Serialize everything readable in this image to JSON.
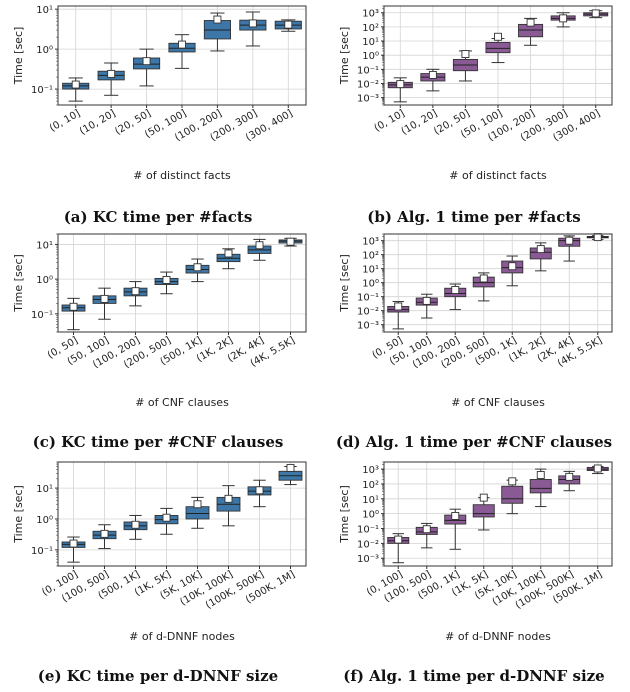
{
  "chart_data": [
    {
      "type": "box",
      "caption": "(a) KC time per #facts",
      "xlabel": "# of distinct facts",
      "ylabel": "Time [sec]",
      "yscale": "log",
      "ylim": [
        0.04,
        12
      ],
      "yticks": [
        0.1,
        1,
        10
      ],
      "ytick_labels": [
        "10⁻¹",
        "10⁰",
        "10¹"
      ],
      "grid": true,
      "color": "#3d77a8",
      "categories": [
        "(0, 10]",
        "(10, 20]",
        "(20, 50]",
        "(50, 100]",
        "(100, 200]",
        "(200, 300]",
        "(300, 400]"
      ],
      "boxes": [
        {
          "whislo": 0.05,
          "q1": 0.1,
          "med": 0.12,
          "q3": 0.14,
          "whishi": 0.19,
          "mean": 0.13
        },
        {
          "whislo": 0.07,
          "q1": 0.17,
          "med": 0.22,
          "q3": 0.28,
          "whishi": 0.45,
          "mean": 0.24
        },
        {
          "whislo": 0.12,
          "q1": 0.32,
          "med": 0.42,
          "q3": 0.6,
          "whishi": 1.0,
          "mean": 0.5
        },
        {
          "whislo": 0.33,
          "q1": 0.85,
          "med": 1.05,
          "q3": 1.4,
          "whishi": 2.3,
          "mean": 1.3
        },
        {
          "whislo": 0.9,
          "q1": 1.8,
          "med": 3.0,
          "q3": 5.2,
          "whishi": 8.0,
          "mean": 5.5
        },
        {
          "whislo": 1.2,
          "q1": 3.0,
          "med": 4.0,
          "q3": 5.3,
          "whishi": 8.5,
          "mean": 4.4
        },
        {
          "whislo": 2.8,
          "q1": 3.2,
          "med": 4.0,
          "q3": 5.0,
          "whishi": 5.4,
          "mean": 4.1
        }
      ]
    },
    {
      "type": "box",
      "caption": "(b) Alg. 1 time per #facts",
      "xlabel": "# of distinct facts",
      "ylabel": "Time [sec]",
      "yscale": "log",
      "ylim": [
        0.0003,
        3000
      ],
      "yticks": [
        0.001,
        0.01,
        0.1,
        1,
        10,
        100,
        1000
      ],
      "ytick_labels": [
        "10⁻³",
        "10⁻²",
        "10⁻¹",
        "10⁰",
        "10¹",
        "10²",
        "10³"
      ],
      "grid": true,
      "color": "#8a5a95",
      "categories": [
        "(0, 10]",
        "(10, 20]",
        "(20, 50]",
        "(50, 100]",
        "(100, 200]",
        "(200, 300]",
        "(300, 400]"
      ],
      "boxes": [
        {
          "whislo": 0.0005,
          "q1": 0.005,
          "med": 0.008,
          "q3": 0.012,
          "whishi": 0.025,
          "mean": 0.009
        },
        {
          "whislo": 0.003,
          "q1": 0.015,
          "med": 0.028,
          "q3": 0.05,
          "whishi": 0.1,
          "mean": 0.04
        },
        {
          "whislo": 0.015,
          "q1": 0.08,
          "med": 0.2,
          "q3": 0.5,
          "whishi": 2.0,
          "mean": 1.2
        },
        {
          "whislo": 0.3,
          "q1": 1.5,
          "med": 3.0,
          "q3": 8.0,
          "whishi": 15,
          "mean": 20
        },
        {
          "whislo": 5,
          "q1": 20,
          "med": 60,
          "q3": 150,
          "whishi": 400,
          "mean": 200
        },
        {
          "whislo": 100,
          "q1": 300,
          "med": 400,
          "q3": 600,
          "whishi": 1000,
          "mean": 400
        },
        {
          "whislo": 450,
          "q1": 600,
          "med": 800,
          "q3": 1000,
          "whishi": 1400,
          "mean": 900
        }
      ]
    },
    {
      "type": "box",
      "caption": "(c) KC time per #CNF clauses",
      "xlabel": "# of CNF clauses",
      "ylabel": "Time [sec]",
      "yscale": "log",
      "ylim": [
        0.03,
        20
      ],
      "yticks": [
        0.1,
        1,
        10
      ],
      "ytick_labels": [
        "10⁻¹",
        "10⁰",
        "10¹"
      ],
      "grid": true,
      "color": "#3d77a8",
      "categories": [
        "(0, 50]",
        "(50, 100]",
        "(100, 200]",
        "(200, 500]",
        "(500, 1K]",
        "(1K, 2K]",
        "(2K, 4K]",
        "(4K, 5.5K]"
      ],
      "boxes": [
        {
          "whislo": 0.035,
          "q1": 0.12,
          "med": 0.15,
          "q3": 0.18,
          "whishi": 0.28,
          "mean": 0.16
        },
        {
          "whislo": 0.07,
          "q1": 0.2,
          "med": 0.26,
          "q3": 0.33,
          "whishi": 0.55,
          "mean": 0.27
        },
        {
          "whislo": 0.17,
          "q1": 0.33,
          "med": 0.43,
          "q3": 0.55,
          "whishi": 0.85,
          "mean": 0.45
        },
        {
          "whislo": 0.38,
          "q1": 0.7,
          "med": 0.85,
          "q3": 1.05,
          "whishi": 1.6,
          "mean": 0.95
        },
        {
          "whislo": 0.85,
          "q1": 1.5,
          "med": 1.9,
          "q3": 2.5,
          "whishi": 3.8,
          "mean": 2.2
        },
        {
          "whislo": 2.0,
          "q1": 3.2,
          "med": 4.0,
          "q3": 5.2,
          "whishi": 7.5,
          "mean": 5.5
        },
        {
          "whislo": 3.5,
          "q1": 5.5,
          "med": 7.0,
          "q3": 9.0,
          "whishi": 14,
          "mean": 9.5
        },
        {
          "whislo": 9,
          "q1": 11,
          "med": 12.5,
          "q3": 13.5,
          "whishi": 15,
          "mean": 12
        }
      ]
    },
    {
      "type": "box",
      "caption": "(d) Alg. 1 time per #CNF clauses",
      "xlabel": "# of CNF clauses",
      "ylabel": "Time [sec]",
      "yscale": "log",
      "ylim": [
        0.0003,
        3000
      ],
      "yticks": [
        0.001,
        0.01,
        0.1,
        1,
        10,
        100,
        1000
      ],
      "ytick_labels": [
        "10⁻³",
        "10⁻²",
        "10⁻¹",
        "10⁰",
        "10¹",
        "10²",
        "10³"
      ],
      "grid": true,
      "color": "#8a5a95",
      "categories": [
        "(0, 50]",
        "(50, 100]",
        "(100, 200]",
        "(200, 500]",
        "(500, 1K]",
        "(1K, 2K]",
        "(2K, 4K]",
        "(4K, 5.5K]"
      ],
      "boxes": [
        {
          "whislo": 0.0005,
          "q1": 0.008,
          "med": 0.012,
          "q3": 0.02,
          "whishi": 0.045,
          "mean": 0.02
        },
        {
          "whislo": 0.003,
          "q1": 0.025,
          "med": 0.04,
          "q3": 0.08,
          "whishi": 0.15,
          "mean": 0.05
        },
        {
          "whislo": 0.012,
          "q1": 0.1,
          "med": 0.17,
          "q3": 0.4,
          "whishi": 0.8,
          "mean": 0.3
        },
        {
          "whislo": 0.05,
          "q1": 0.5,
          "med": 1.0,
          "q3": 2.5,
          "whishi": 5.0,
          "mean": 2.0
        },
        {
          "whislo": 0.6,
          "q1": 5,
          "med": 12,
          "q3": 35,
          "whishi": 80,
          "mean": 15
        },
        {
          "whislo": 7,
          "q1": 50,
          "med": 150,
          "q3": 300,
          "whishi": 700,
          "mean": 250
        },
        {
          "whislo": 35,
          "q1": 400,
          "med": 1000,
          "q3": 1500,
          "whishi": 2200,
          "mean": 1000
        },
        {
          "whislo": 1200,
          "q1": 1600,
          "med": 1800,
          "q3": 2000,
          "whishi": 2300,
          "mean": 1800
        }
      ]
    },
    {
      "type": "box",
      "caption": "(e) KC time per d-DNNF size",
      "xlabel": "# of d-DNNF nodes",
      "ylabel": "Time [sec]",
      "yscale": "log",
      "ylim": [
        0.03,
        70
      ],
      "yticks": [
        0.1,
        1,
        10
      ],
      "ytick_labels": [
        "10⁻¹",
        "10⁰",
        "10¹"
      ],
      "grid": true,
      "color": "#3d77a8",
      "categories": [
        "(0, 100]",
        "(100, 500]",
        "(500, 1K]",
        "(1K, 5K]",
        "(5K, 10K]",
        "(10K, 100K]",
        "(100K, 500K]",
        "(500K, 1M]"
      ],
      "boxes": [
        {
          "whislo": 0.04,
          "q1": 0.12,
          "med": 0.15,
          "q3": 0.18,
          "whishi": 0.26,
          "mean": 0.16
        },
        {
          "whislo": 0.11,
          "q1": 0.23,
          "med": 0.3,
          "q3": 0.4,
          "whishi": 0.65,
          "mean": 0.33
        },
        {
          "whislo": 0.22,
          "q1": 0.45,
          "med": 0.6,
          "q3": 0.8,
          "whishi": 1.3,
          "mean": 0.65
        },
        {
          "whislo": 0.32,
          "q1": 0.7,
          "med": 0.95,
          "q3": 1.3,
          "whishi": 2.2,
          "mean": 1.1
        },
        {
          "whislo": 0.5,
          "q1": 1.0,
          "med": 1.5,
          "q3": 2.5,
          "whishi": 5.0,
          "mean": 3.0
        },
        {
          "whislo": 0.6,
          "q1": 1.8,
          "med": 3.0,
          "q3": 5.0,
          "whishi": 12,
          "mean": 4.5
        },
        {
          "whislo": 2.5,
          "q1": 6,
          "med": 8,
          "q3": 11,
          "whishi": 18,
          "mean": 8.5
        },
        {
          "whislo": 13,
          "q1": 18,
          "med": 25,
          "q3": 35,
          "whishi": 50,
          "mean": 45
        }
      ]
    },
    {
      "type": "box",
      "caption": "(f) Alg. 1 time per d-DNNF size",
      "xlabel": "# of d-DNNF nodes",
      "ylabel": "Time [sec]",
      "yscale": "log",
      "ylim": [
        0.0003,
        3000
      ],
      "yticks": [
        0.001,
        0.01,
        0.1,
        1,
        10,
        100,
        1000
      ],
      "ytick_labels": [
        "10⁻³",
        "10⁻²",
        "10⁻¹",
        "10⁰",
        "10¹",
        "10²",
        "10³"
      ],
      "grid": true,
      "color": "#8a5a95",
      "categories": [
        "(0, 100]",
        "(100, 500]",
        "(500, 1K]",
        "(1K, 5K]",
        "(5K, 10K]",
        "(10K, 100K]",
        "(100K, 500K]",
        "(500K, 1M]"
      ],
      "boxes": [
        {
          "whislo": 0.0005,
          "q1": 0.01,
          "med": 0.015,
          "q3": 0.025,
          "whishi": 0.045,
          "mean": 0.018
        },
        {
          "whislo": 0.005,
          "q1": 0.04,
          "med": 0.06,
          "q3": 0.12,
          "whishi": 0.22,
          "mean": 0.09
        },
        {
          "whislo": 0.004,
          "q1": 0.2,
          "med": 0.35,
          "q3": 0.8,
          "whishi": 2.0,
          "mean": 0.7
        },
        {
          "whislo": 0.08,
          "q1": 0.6,
          "med": 1.0,
          "q3": 4.0,
          "whishi": 12,
          "mean": 12
        },
        {
          "whislo": 1.0,
          "q1": 5,
          "med": 10,
          "q3": 70,
          "whishi": 180,
          "mean": 150
        },
        {
          "whislo": 3,
          "q1": 25,
          "med": 50,
          "q3": 200,
          "whishi": 1000,
          "mean": 400
        },
        {
          "whislo": 35,
          "q1": 100,
          "med": 200,
          "q3": 350,
          "whishi": 700,
          "mean": 300
        },
        {
          "whislo": 500,
          "q1": 800,
          "med": 1000,
          "q3": 1300,
          "whishi": 1500,
          "mean": 1100
        }
      ]
    }
  ]
}
